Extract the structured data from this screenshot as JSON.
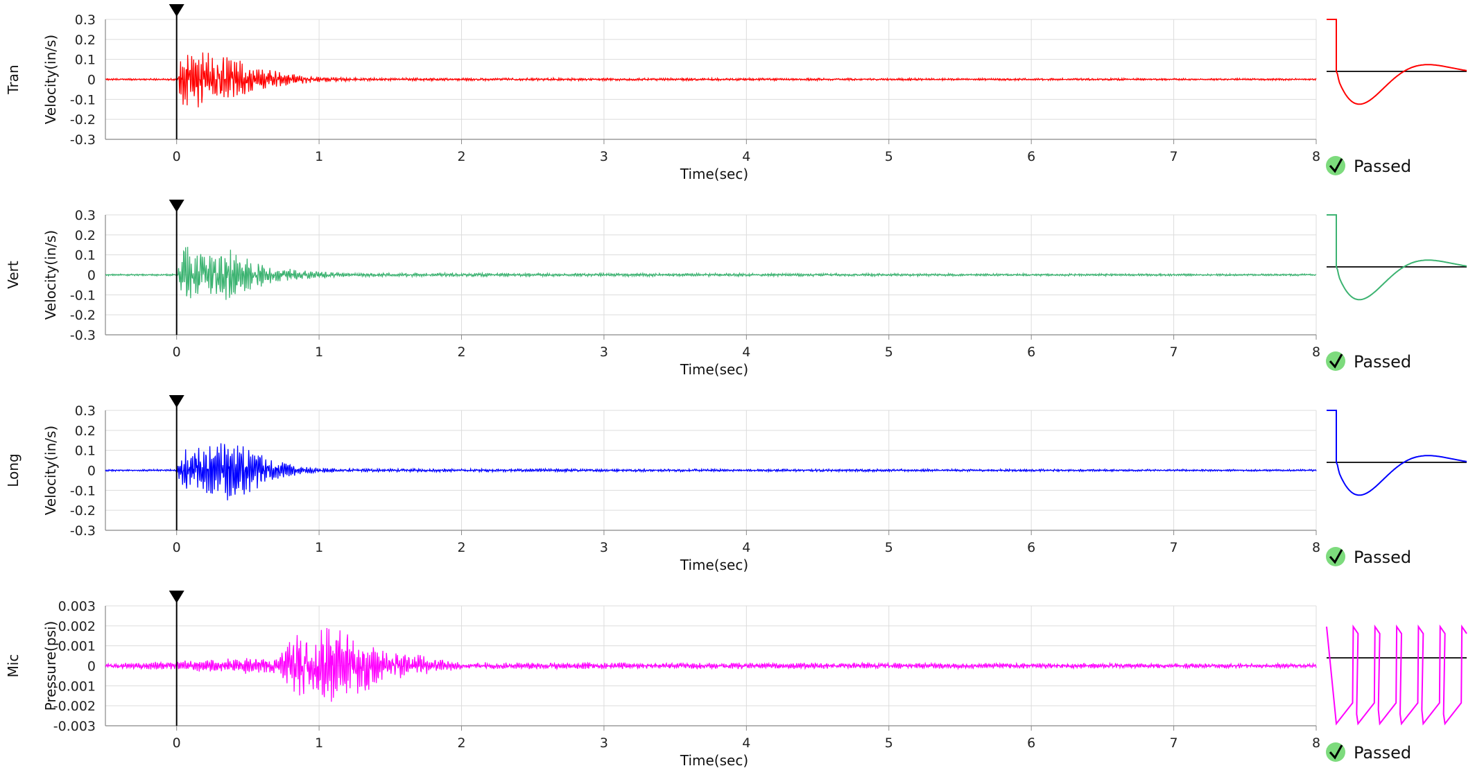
{
  "chart_data": [
    {
      "type": "line",
      "channel": "Tran",
      "ylabel": "Velocity(in/s)",
      "xlabel": "Time(sec)",
      "xlim": [
        -0.5,
        8
      ],
      "ylim": [
        -0.3,
        0.3
      ],
      "x_ticks": [
        "0",
        "1",
        "2",
        "3",
        "4",
        "5",
        "6",
        "7",
        "8"
      ],
      "y_ticks": [
        "0.3",
        "0.2",
        "0.1",
        "0",
        "-0.1",
        "-0.2",
        "-0.3"
      ],
      "grid": true,
      "trigger_time": 0,
      "color": "#ff0000",
      "series": [
        {
          "envelope": [
            [
              -0.5,
              0.004
            ],
            [
              0.0,
              0.004
            ],
            [
              0.05,
              0.14
            ],
            [
              0.2,
              0.12
            ],
            [
              0.4,
              0.09
            ],
            [
              0.6,
              0.05
            ],
            [
              0.8,
              0.025
            ],
            [
              1.0,
              0.012
            ],
            [
              1.3,
              0.006
            ],
            [
              8.0,
              0.004
            ]
          ],
          "peak_positive": 0.15,
          "peak_negative": -0.14
        }
      ],
      "calibration_pulse": {
        "shape": "damped",
        "color": "#ff0000"
      },
      "status": "Passed"
    },
    {
      "type": "line",
      "channel": "Vert",
      "ylabel": "Velocity(in/s)",
      "xlabel": "Time(sec)",
      "xlim": [
        -0.5,
        8
      ],
      "ylim": [
        -0.3,
        0.3
      ],
      "x_ticks": [
        "0",
        "1",
        "2",
        "3",
        "4",
        "5",
        "6",
        "7",
        "8"
      ],
      "y_ticks": [
        "0.3",
        "0.2",
        "0.1",
        "0",
        "-0.1",
        "-0.2",
        "-0.3"
      ],
      "grid": true,
      "trigger_time": 0,
      "color": "#3cb371",
      "series": [
        {
          "envelope": [
            [
              -0.5,
              0.004
            ],
            [
              0.0,
              0.004
            ],
            [
              0.05,
              0.13
            ],
            [
              0.2,
              0.11
            ],
            [
              0.35,
              0.12
            ],
            [
              0.5,
              0.07
            ],
            [
              0.7,
              0.035
            ],
            [
              0.9,
              0.018
            ],
            [
              1.2,
              0.008
            ],
            [
              8.0,
              0.004
            ]
          ],
          "peak_positive": 0.14,
          "peak_negative": -0.19
        }
      ],
      "calibration_pulse": {
        "shape": "damped",
        "color": "#3cb371"
      },
      "status": "Passed"
    },
    {
      "type": "line",
      "channel": "Long",
      "ylabel": "Velocity(in/s)",
      "xlabel": "Time(sec)",
      "xlim": [
        -0.5,
        8
      ],
      "ylim": [
        -0.3,
        0.3
      ],
      "x_ticks": [
        "0",
        "1",
        "2",
        "3",
        "4",
        "5",
        "6",
        "7",
        "8"
      ],
      "y_ticks": [
        "0.3",
        "0.2",
        "0.1",
        "0",
        "-0.1",
        "-0.2",
        "-0.3"
      ],
      "grid": true,
      "trigger_time": 0,
      "color": "#0000ff",
      "series": [
        {
          "envelope": [
            [
              -0.5,
              0.004
            ],
            [
              0.0,
              0.004
            ],
            [
              0.05,
              0.11
            ],
            [
              0.2,
              0.11
            ],
            [
              0.38,
              0.14
            ],
            [
              0.55,
              0.08
            ],
            [
              0.7,
              0.04
            ],
            [
              0.9,
              0.015
            ],
            [
              1.2,
              0.007
            ],
            [
              8.0,
              0.004
            ]
          ],
          "peak_positive": 0.15,
          "peak_negative": -0.15
        }
      ],
      "calibration_pulse": {
        "shape": "damped",
        "color": "#0000ff"
      },
      "status": "Passed"
    },
    {
      "type": "line",
      "channel": "Mic",
      "ylabel": "Pressure(psi)",
      "xlabel": "Time(sec)",
      "xlim": [
        -0.5,
        8
      ],
      "ylim": [
        -0.003,
        0.003
      ],
      "x_ticks": [
        "0",
        "1",
        "2",
        "3",
        "4",
        "5",
        "6",
        "7",
        "8"
      ],
      "y_ticks": [
        "0.003",
        "0.002",
        "0.001",
        "0",
        "-0.001",
        "-0.002",
        "-0.003"
      ],
      "grid": true,
      "trigger_time": 0,
      "color": "#ff00ff",
      "series": [
        {
          "envelope": [
            [
              -0.5,
              0.0001
            ],
            [
              0.0,
              0.0002
            ],
            [
              0.3,
              0.0003
            ],
            [
              0.7,
              0.0004
            ],
            [
              0.85,
              0.0014
            ],
            [
              1.1,
              0.0018
            ],
            [
              1.3,
              0.0012
            ],
            [
              1.5,
              0.0006
            ],
            [
              1.8,
              0.0004
            ],
            [
              2.0,
              0.00015
            ],
            [
              8.0,
              0.0001
            ]
          ],
          "peak_positive": 0.0022,
          "peak_negative": -0.0018
        }
      ],
      "calibration_pulse": {
        "shape": "sawtooth",
        "color": "#ff00ff"
      },
      "status": "Passed"
    }
  ]
}
